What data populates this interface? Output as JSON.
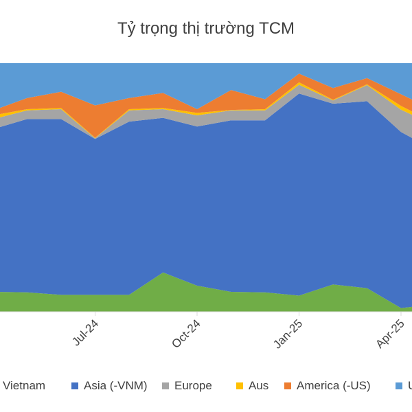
{
  "chart_data": {
    "type": "area",
    "stacked": true,
    "percent": true,
    "title": "Tỷ trọng thị trường TCM",
    "x": [
      "2024-04",
      "2024-05",
      "2024-06",
      "2024-07",
      "2024-08",
      "2024-09",
      "2024-10",
      "2024-11",
      "2024-12",
      "2025-01",
      "2025-02",
      "2025-03",
      "2025-04",
      "2025-05"
    ],
    "x_tick_labels": [
      {
        "x": "2024-07",
        "label": "Jul-24"
      },
      {
        "x": "2024-10",
        "label": "Oct-24"
      },
      {
        "x": "2025-01",
        "label": "Jan-25"
      },
      {
        "x": "2025-04",
        "label": "Apr-25"
      }
    ],
    "ylim": [
      0,
      100
    ],
    "series": [
      {
        "name": "Vietnam",
        "color": "#70ad47",
        "values": [
          8,
          7.8,
          6.8,
          6.8,
          6.8,
          15.8,
          10.5,
          8,
          7.8,
          6.5,
          11,
          9.5,
          1.5,
          3
        ]
      },
      {
        "name": "Asia (-VNM)",
        "color": "#4472c4",
        "values": [
          65.5,
          69.7,
          70.7,
          62.7,
          69.7,
          62.2,
          64,
          69,
          69.2,
          81.3,
          72.7,
          75.2,
          70.8,
          62
        ]
      },
      {
        "name": "Europe",
        "color": "#a5a5a5",
        "values": [
          4,
          3.5,
          4,
          0.3,
          4.5,
          3.5,
          4.5,
          4,
          4,
          3.5,
          1.3,
          6.5,
          9,
          10
        ]
      },
      {
        "name": "Aus",
        "color": "#ffc000",
        "values": [
          1.5,
          0.5,
          0.5,
          0.2,
          0.5,
          0.5,
          1,
          0.2,
          0.5,
          1,
          0.3,
          0.3,
          1.5,
          1
        ]
      },
      {
        "name": "America (-US)",
        "color": "#ed7d31",
        "values": [
          2,
          4.5,
          6.5,
          13,
          4.5,
          6,
          1.5,
          8,
          4,
          3.5,
          4.7,
          2.5,
          4.7,
          5
        ]
      },
      {
        "name": "US",
        "color": "#5b9bd5",
        "values": [
          19,
          14,
          11.5,
          17,
          14,
          12,
          18.5,
          10.8,
          14.5,
          4.2,
          10,
          6,
          12.5,
          19
        ]
      }
    ],
    "legend": "bottom",
    "grid": false
  }
}
